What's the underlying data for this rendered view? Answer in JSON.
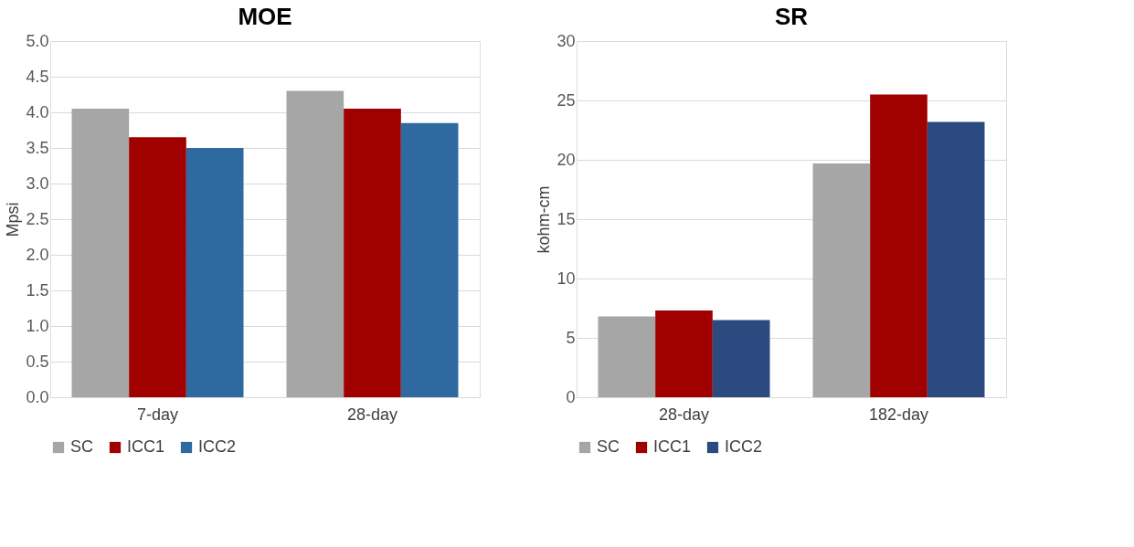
{
  "chart_data": [
    {
      "type": "bar",
      "title": "MOE",
      "ylabel": "Mpsi",
      "categories": [
        "7-day",
        "28-day"
      ],
      "series": [
        {
          "name": "SC",
          "color": "#a6a6a6",
          "values": [
            4.05,
            4.3
          ]
        },
        {
          "name": "ICC1",
          "color": "#a00000",
          "values": [
            3.65,
            4.05
          ]
        },
        {
          "name": "ICC2",
          "color": "#2e6aa0",
          "values": [
            3.5,
            3.85
          ]
        }
      ],
      "ylim": [
        0,
        5
      ],
      "yticks": [
        {
          "value": 0,
          "label": "0.0"
        },
        {
          "value": 0.5,
          "label": "0.5"
        },
        {
          "value": 1,
          "label": "1.0"
        },
        {
          "value": 1.5,
          "label": "1.5"
        },
        {
          "value": 2,
          "label": "2.0"
        },
        {
          "value": 2.5,
          "label": "2.5"
        },
        {
          "value": 3,
          "label": "3.0"
        },
        {
          "value": 3.5,
          "label": "3.5"
        },
        {
          "value": 4,
          "label": "4.0"
        },
        {
          "value": 4.5,
          "label": "4.5"
        },
        {
          "value": 5,
          "label": "5.0"
        }
      ],
      "grid": "y",
      "legend": "bottom"
    },
    {
      "type": "bar",
      "title": "SR",
      "ylabel": "kohm-cm",
      "categories": [
        "28-day",
        "182-day"
      ],
      "series": [
        {
          "name": "SC",
          "color": "#a6a6a6",
          "values": [
            6.8,
            19.7
          ]
        },
        {
          "name": "ICC1",
          "color": "#a00000",
          "values": [
            7.3,
            25.5
          ]
        },
        {
          "name": "ICC2",
          "color": "#2a4a80",
          "values": [
            6.5,
            23.2
          ]
        }
      ],
      "ylim": [
        0,
        30
      ],
      "yticks": [
        0,
        5,
        10,
        15,
        20,
        25,
        30
      ],
      "grid": "y",
      "legend": "bottom"
    }
  ]
}
